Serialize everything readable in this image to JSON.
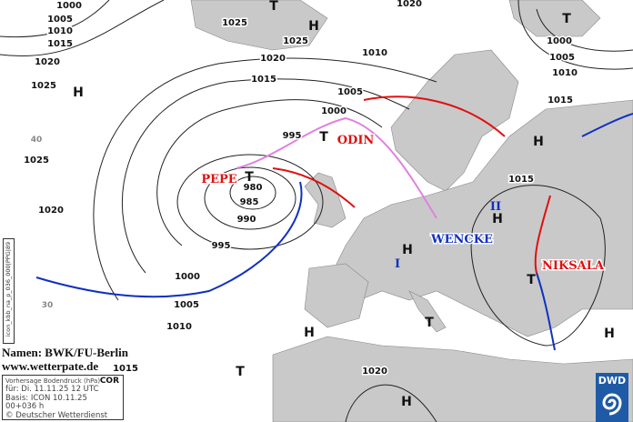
{
  "colors": {
    "land": "#c9c9c9",
    "sea": "#ffffff",
    "isobar": "#222222",
    "warm_front": "#e01010",
    "cold_front": "#1030c0",
    "occlusion": "#e080e0",
    "dwd_blue": "#1f5aa6"
  },
  "isobar_labels": [
    "1000",
    "1005",
    "1010",
    "1015",
    "1020",
    "1025",
    "1025",
    "1025",
    "1020",
    "1015",
    "1010",
    "1005",
    "1000",
    "995",
    "980",
    "985",
    "990",
    "995",
    "1000",
    "1005",
    "1010",
    "1015",
    "1020",
    "1025",
    "1020",
    "1020",
    "1000",
    "1005",
    "1010",
    "1015",
    "1015"
  ],
  "latitude_labels": [
    "40",
    "30"
  ],
  "high_label": "H",
  "low_label": "T",
  "fronts_names": {
    "pepe": "PEPE",
    "odin": "ODIN",
    "wencke": "WENCKE",
    "niksala": "NIKSALA",
    "ii": "II",
    "i": "I"
  },
  "credits": {
    "names": "Namen: BWK/FU-Berlin",
    "website": "www.wetterpate.de"
  },
  "info_box": {
    "title": "Vorhersage Bodendruck (hPa)",
    "cor": "COR",
    "valid": "für:  Di. 11.11.25  12 UTC",
    "basis": "Basis: ICON  10.11.25 00+036 h",
    "copyright": "© Deutscher Wetterdienst"
  },
  "model_tag": "icon_kbb_na_p_036_000|PPG|89",
  "logo": {
    "text": "DWD",
    "icon": "dwd-spiral-logo"
  }
}
